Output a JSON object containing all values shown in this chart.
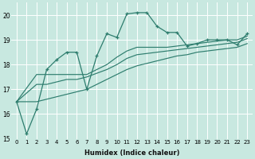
{
  "xlabel": "Humidex (Indice chaleur)",
  "background_color": "#c8e8e0",
  "grid_color": "#ffffff",
  "line_color": "#2e7d6e",
  "xlim": [
    -0.5,
    23.5
  ],
  "ylim": [
    15,
    20.5
  ],
  "yticks": [
    15,
    16,
    17,
    18,
    19,
    20
  ],
  "xticks": [
    0,
    1,
    2,
    3,
    4,
    5,
    6,
    7,
    8,
    9,
    10,
    11,
    12,
    13,
    14,
    15,
    16,
    17,
    18,
    19,
    20,
    21,
    22,
    23
  ],
  "line1_x": [
    0,
    1,
    2,
    3,
    4,
    5,
    6,
    7,
    8,
    9,
    10,
    11,
    12,
    13,
    14,
    15,
    16,
    17,
    18,
    19,
    20,
    21,
    22,
    23
  ],
  "line1_y": [
    16.5,
    15.2,
    16.2,
    17.8,
    18.2,
    18.5,
    18.5,
    17.0,
    18.35,
    19.25,
    19.1,
    20.05,
    20.1,
    20.1,
    19.55,
    19.3,
    19.3,
    18.75,
    18.85,
    19.0,
    19.0,
    19.0,
    18.8,
    19.25
  ],
  "line2_x": [
    0,
    2,
    3,
    4,
    5,
    6,
    7,
    8,
    9,
    10,
    11,
    12,
    13,
    14,
    15,
    16,
    17,
    18,
    19,
    20,
    21,
    22,
    23
  ],
  "line2_y": [
    16.5,
    17.6,
    17.6,
    17.6,
    17.6,
    17.6,
    17.6,
    17.8,
    18.0,
    18.3,
    18.55,
    18.7,
    18.7,
    18.7,
    18.7,
    18.75,
    18.8,
    18.85,
    18.9,
    18.95,
    19.0,
    19.0,
    19.15
  ],
  "line3_x": [
    0,
    2,
    3,
    4,
    5,
    6,
    7,
    8,
    9,
    10,
    11,
    12,
    13,
    14,
    15,
    16,
    17,
    18,
    19,
    20,
    21,
    22,
    23
  ],
  "line3_y": [
    16.5,
    17.2,
    17.2,
    17.3,
    17.4,
    17.4,
    17.5,
    17.65,
    17.8,
    18.0,
    18.25,
    18.4,
    18.45,
    18.5,
    18.55,
    18.6,
    18.65,
    18.7,
    18.75,
    18.8,
    18.85,
    18.9,
    19.05
  ],
  "line4_x": [
    0,
    2,
    3,
    4,
    5,
    6,
    7,
    8,
    9,
    10,
    11,
    12,
    13,
    14,
    15,
    16,
    17,
    18,
    19,
    20,
    21,
    22,
    23
  ],
  "line4_y": [
    16.5,
    16.5,
    16.6,
    16.7,
    16.8,
    16.9,
    17.0,
    17.2,
    17.4,
    17.6,
    17.8,
    17.95,
    18.05,
    18.15,
    18.25,
    18.35,
    18.4,
    18.5,
    18.55,
    18.6,
    18.65,
    18.7,
    18.85
  ]
}
